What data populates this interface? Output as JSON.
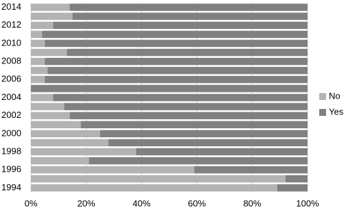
{
  "chart_data": {
    "type": "stacked-barh",
    "categories": [
      "1994",
      null,
      "1996",
      null,
      "1998",
      null,
      "2000",
      null,
      "2002",
      null,
      "2004",
      null,
      "2006",
      null,
      "2008",
      null,
      "2010",
      null,
      "2012",
      null,
      "2014"
    ],
    "series": [
      {
        "name": "No",
        "color": "#b3b3b3",
        "values": [
          89,
          92,
          59,
          21,
          38,
          28,
          25,
          18,
          14,
          12,
          8,
          0,
          5,
          6,
          5,
          13,
          5,
          4,
          8,
          15,
          14
        ]
      },
      {
        "name": "Yes",
        "color": "#808080",
        "values": [
          11,
          8,
          41,
          79,
          62,
          72,
          75,
          82,
          86,
          88,
          92,
          100,
          95,
          94,
          95,
          87,
          95,
          96,
          92,
          85,
          86
        ]
      }
    ],
    "xlim": [
      0,
      100
    ],
    "xticks": [
      {
        "value": 0,
        "label": "0%"
      },
      {
        "value": 20,
        "label": "20%"
      },
      {
        "value": 40,
        "label": "40%"
      },
      {
        "value": 60,
        "label": "60%"
      },
      {
        "value": 80,
        "label": "80%"
      },
      {
        "value": 100,
        "label": "100%"
      }
    ],
    "grid": true,
    "legend": "right"
  }
}
